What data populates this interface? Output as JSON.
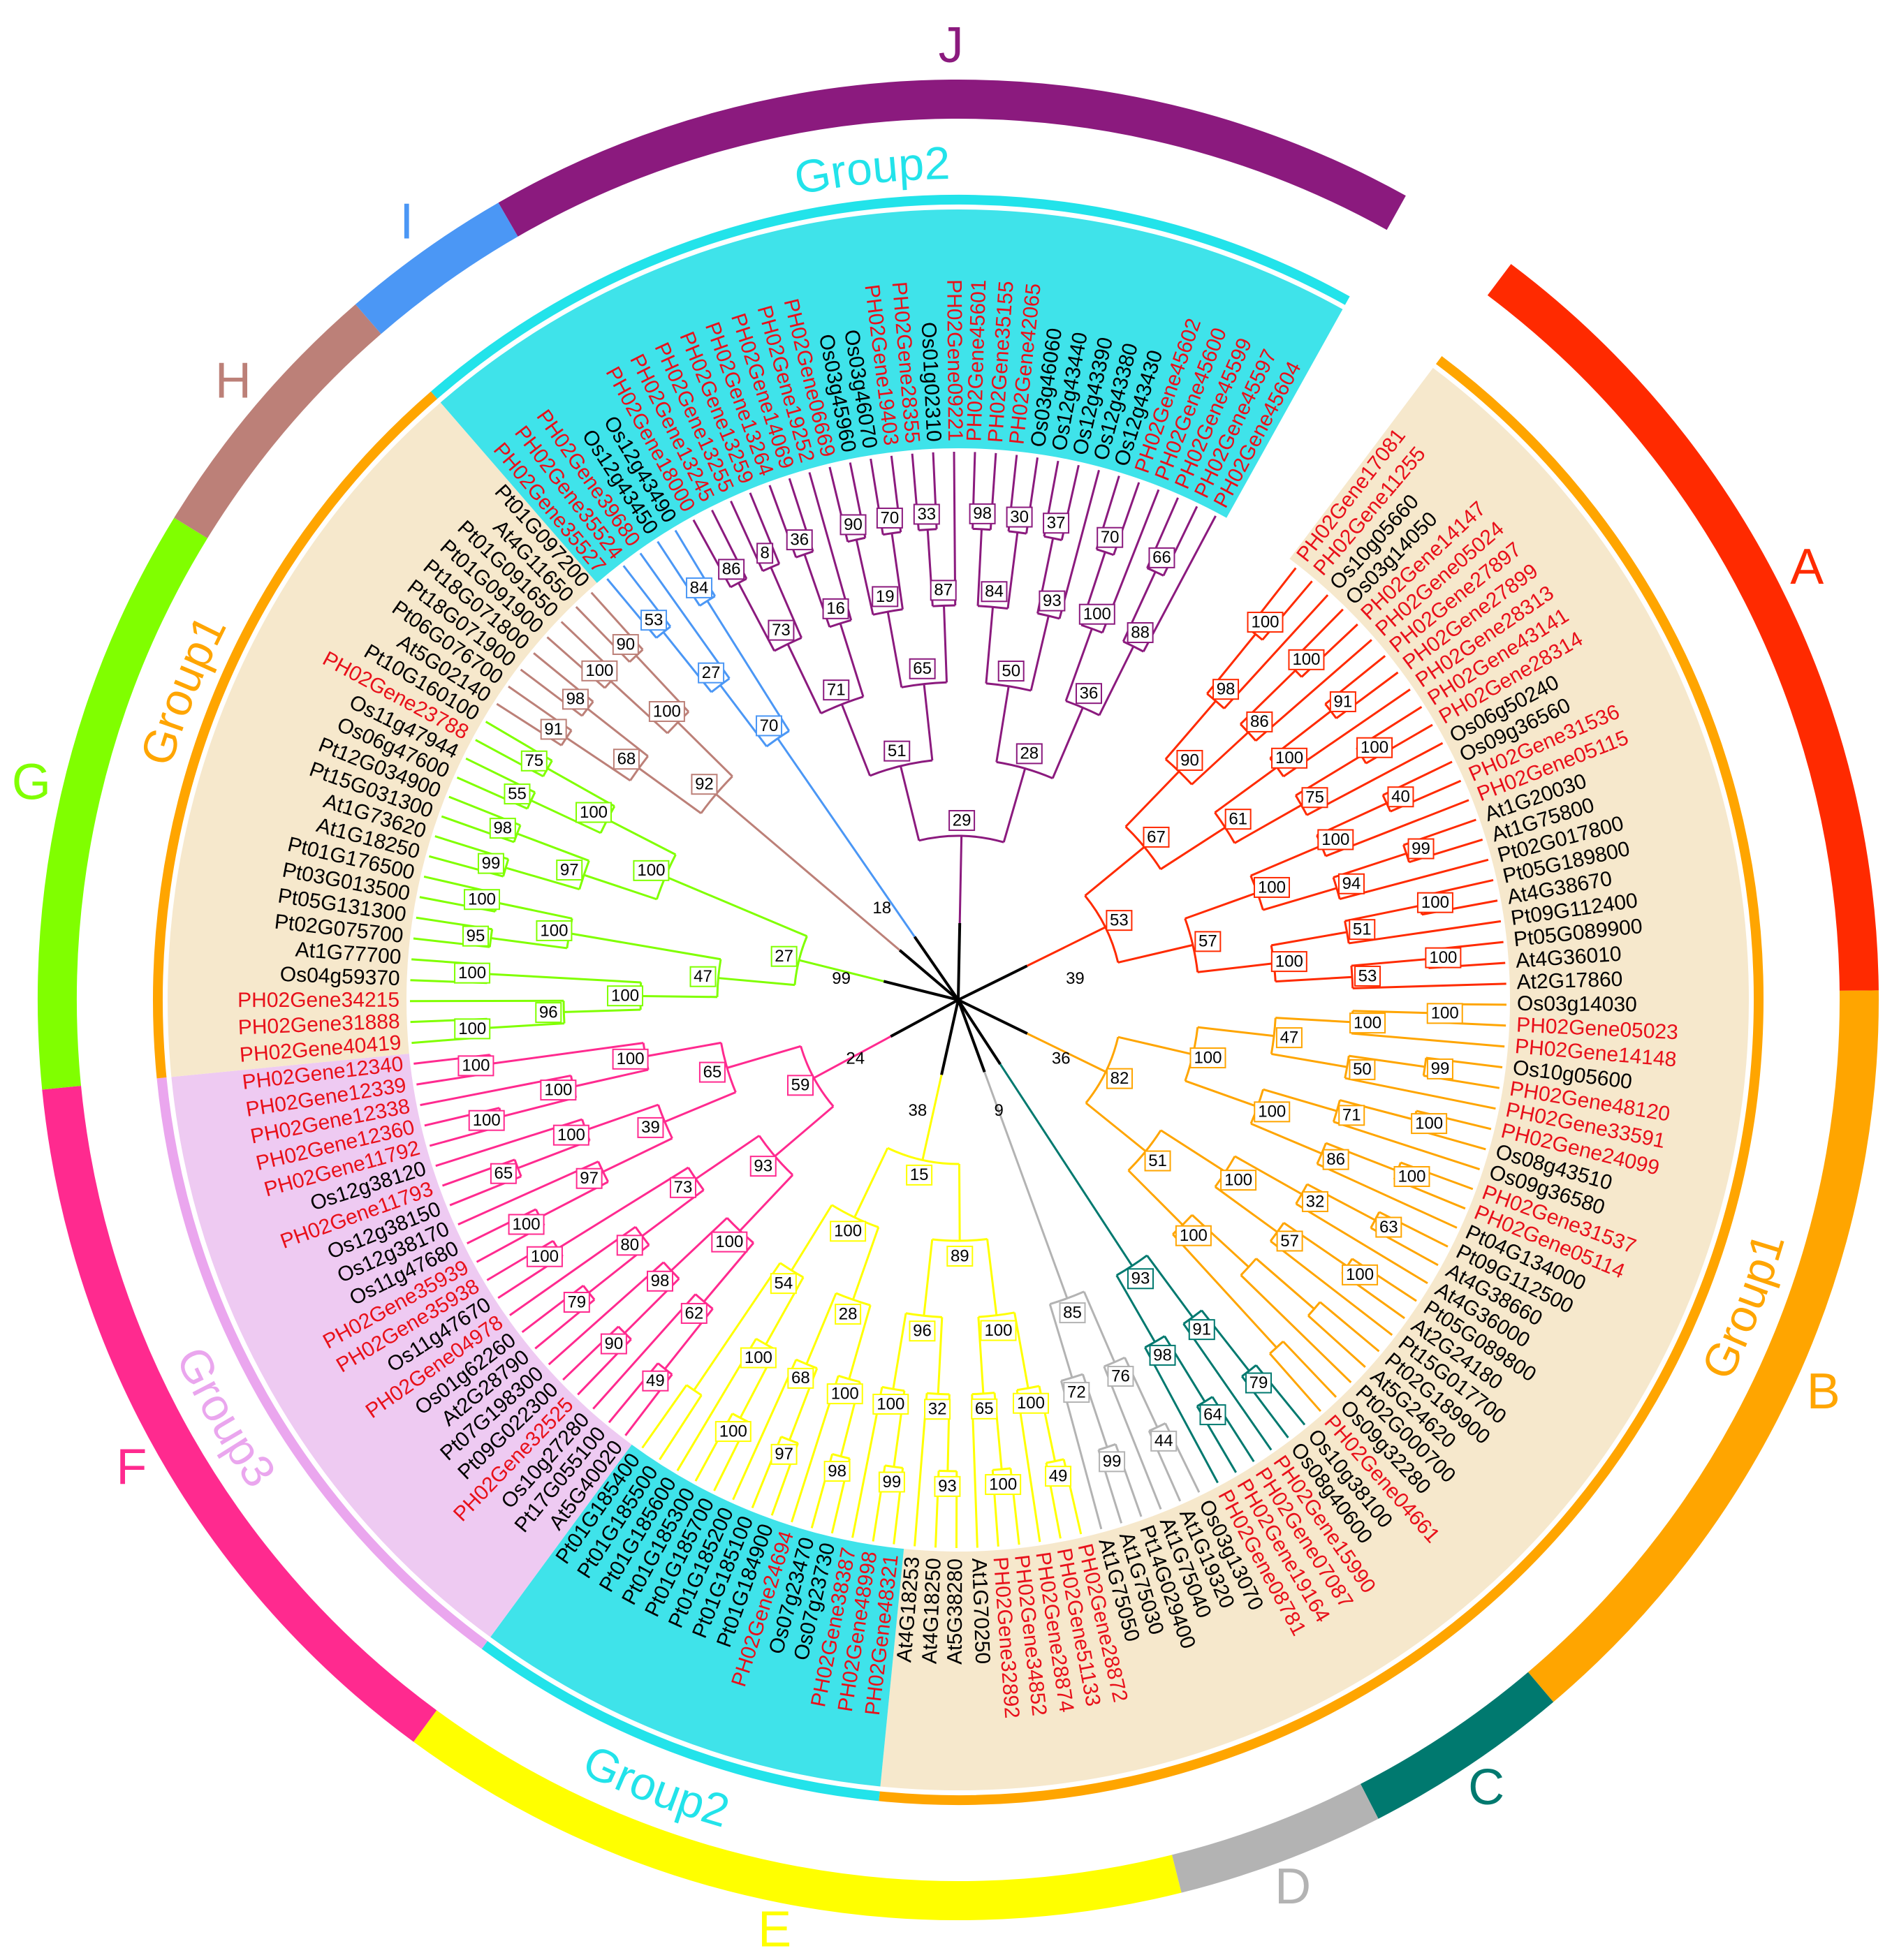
{
  "clades": [
    {
      "letter": "A",
      "color": "#ff2a00",
      "bootstraps": [
        53,
        67,
        90,
        98,
        100,
        86,
        100,
        61,
        100,
        91,
        75,
        100,
        57,
        100,
        100,
        40,
        94,
        99,
        100,
        51,
        100,
        53,
        100
      ],
      "leaves": [
        {
          "name": "PH02Gene17081",
          "color": "#e8101a"
        },
        {
          "name": "PH02Gene11255",
          "color": "#e8101a"
        },
        {
          "name": "Os10g05660",
          "color": "#000000"
        },
        {
          "name": "Os03g14050",
          "color": "#000000"
        },
        {
          "name": "PH02Gene14147",
          "color": "#e8101a"
        },
        {
          "name": "PH02Gene05024",
          "color": "#e8101a"
        },
        {
          "name": "PH02Gene27897",
          "color": "#e8101a"
        },
        {
          "name": "PH02Gene27899",
          "color": "#e8101a"
        },
        {
          "name": "PH02Gene28313",
          "color": "#e8101a"
        },
        {
          "name": "PH02Gene43141",
          "color": "#e8101a"
        },
        {
          "name": "PH02Gene28314",
          "color": "#e8101a"
        },
        {
          "name": "Os06g50240",
          "color": "#000000"
        },
        {
          "name": "Os09g36560",
          "color": "#000000"
        },
        {
          "name": "PH02Gene31536",
          "color": "#e8101a"
        },
        {
          "name": "PH02Gene05115",
          "color": "#e8101a"
        },
        {
          "name": "At1G20030",
          "color": "#000000"
        },
        {
          "name": "At1G75800",
          "color": "#000000"
        },
        {
          "name": "Pt02G017800",
          "color": "#000000"
        },
        {
          "name": "Pt05G189800",
          "color": "#000000"
        },
        {
          "name": "At4G38670",
          "color": "#000000"
        },
        {
          "name": "Pt09G112400",
          "color": "#000000"
        },
        {
          "name": "Pt05G089900",
          "color": "#000000"
        },
        {
          "name": "At4G36010",
          "color": "#000000"
        },
        {
          "name": "At2G17860",
          "color": "#000000"
        }
      ]
    },
    {
      "letter": "B",
      "color": "#ffa500",
      "bootstraps": [
        82,
        100,
        47,
        100,
        100,
        50,
        99,
        100,
        71,
        100,
        86,
        100,
        51,
        100,
        32,
        63,
        57,
        100,
        100
      ],
      "leaves": [
        {
          "name": "Os03g14030",
          "color": "#000000"
        },
        {
          "name": "PH02Gene05023",
          "color": "#e8101a"
        },
        {
          "name": "PH02Gene14148",
          "color": "#e8101a"
        },
        {
          "name": "Os10g05600",
          "color": "#000000"
        },
        {
          "name": "PH02Gene48120",
          "color": "#e8101a"
        },
        {
          "name": "PH02Gene33591",
          "color": "#e8101a"
        },
        {
          "name": "PH02Gene24099",
          "color": "#e8101a"
        },
        {
          "name": "Os08g43510",
          "color": "#000000"
        },
        {
          "name": "Os09g36580",
          "color": "#000000"
        },
        {
          "name": "PH02Gene31537",
          "color": "#e8101a"
        },
        {
          "name": "PH02Gene05114",
          "color": "#e8101a"
        },
        {
          "name": "Pt04G134000",
          "color": "#000000"
        },
        {
          "name": "Pt09G112500",
          "color": "#000000"
        },
        {
          "name": "At4G38660",
          "color": "#000000"
        },
        {
          "name": "At4G36000",
          "color": "#000000"
        },
        {
          "name": "Pt05G089800",
          "color": "#000000"
        },
        {
          "name": "At2G24180",
          "color": "#000000"
        },
        {
          "name": "Pt15G017700",
          "color": "#000000"
        },
        {
          "name": "Pt02G189900",
          "color": "#000000"
        },
        {
          "name": "At5G24620",
          "color": "#000000"
        },
        {
          "name": "Pt02G000700",
          "color": "#000000"
        },
        {
          "name": "Os09g32280",
          "color": "#000000"
        },
        {
          "name": "PH02Gene04661",
          "color": "#e8101a"
        }
      ]
    },
    {
      "letter": "C",
      "color": "#00796f",
      "bootstraps": [
        93,
        91,
        79,
        98,
        64
      ],
      "leaves": [
        {
          "name": "Os10g38100",
          "color": "#000000"
        },
        {
          "name": "Os08g40600",
          "color": "#000000"
        },
        {
          "name": "PH02Gene15990",
          "color": "#e8101a"
        },
        {
          "name": "PH02Gene07087",
          "color": "#e8101a"
        },
        {
          "name": "PH02Gene19164",
          "color": "#e8101a"
        },
        {
          "name": "PH02Gene08781",
          "color": "#e8101a"
        }
      ]
    },
    {
      "letter": "D",
      "color": "#b3b3b3",
      "bootstraps": [
        85,
        76,
        44,
        72,
        99
      ],
      "leaves": [
        {
          "name": "Os03g13070",
          "color": "#000000"
        },
        {
          "name": "At1G19320",
          "color": "#000000"
        },
        {
          "name": "At1G75040",
          "color": "#000000"
        },
        {
          "name": "Pt14G029400",
          "color": "#000000"
        },
        {
          "name": "At1G75030",
          "color": "#000000"
        },
        {
          "name": "At1G75050",
          "color": "#000000"
        }
      ]
    },
    {
      "letter": "E",
      "color": "#ffff00",
      "bootstraps": [
        15,
        89,
        100,
        100,
        49,
        65,
        100,
        96,
        32,
        93,
        100,
        99,
        100,
        28,
        100,
        98,
        68,
        97,
        54,
        100,
        100
      ],
      "leaves": [
        {
          "name": "PH02Gene28872",
          "color": "#e8101a"
        },
        {
          "name": "PH02Gene51133",
          "color": "#e8101a"
        },
        {
          "name": "PH02Gene28874",
          "color": "#e8101a"
        },
        {
          "name": "PH02Gene34852",
          "color": "#e8101a"
        },
        {
          "name": "PH02Gene32892",
          "color": "#e8101a"
        },
        {
          "name": "At1G70250",
          "color": "#000000"
        },
        {
          "name": "At5G38280",
          "color": "#000000"
        },
        {
          "name": "At4G18250",
          "color": "#000000"
        },
        {
          "name": "At4G18253",
          "color": "#000000"
        },
        {
          "name": "PH02Gene48321",
          "color": "#e8101a"
        },
        {
          "name": "PH02Gene48998",
          "color": "#e8101a"
        },
        {
          "name": "PH02Gene38387",
          "color": "#e8101a"
        },
        {
          "name": "Os07g23730",
          "color": "#000000"
        },
        {
          "name": "Os07g23470",
          "color": "#000000"
        },
        {
          "name": "PH02Gene24694",
          "color": "#e8101a"
        },
        {
          "name": "Pt01G184900",
          "color": "#000000"
        },
        {
          "name": "Pt01G185100",
          "color": "#000000"
        },
        {
          "name": "Pt01G185200",
          "color": "#000000"
        },
        {
          "name": "Pt01G185700",
          "color": "#000000"
        },
        {
          "name": "Pt01G185300",
          "color": "#000000"
        },
        {
          "name": "Pt01G185600",
          "color": "#000000"
        },
        {
          "name": "Pt01G185500",
          "color": "#000000"
        },
        {
          "name": "Pt01G185400",
          "color": "#000000"
        }
      ]
    },
    {
      "letter": "F",
      "color": "#ff2a8f",
      "bootstraps": [
        59,
        93,
        100,
        62,
        49,
        98,
        90,
        73,
        80,
        79,
        100,
        65,
        39,
        97,
        100,
        100,
        65,
        100,
        100,
        100,
        100
      ],
      "leaves": [
        {
          "name": "At5G40020",
          "color": "#000000"
        },
        {
          "name": "Pt17G055100",
          "color": "#000000"
        },
        {
          "name": "Os10g27280",
          "color": "#000000"
        },
        {
          "name": "PH02Gene32525",
          "color": "#e8101a"
        },
        {
          "name": "Pt09G022300",
          "color": "#000000"
        },
        {
          "name": "Pt07G198300",
          "color": "#000000"
        },
        {
          "name": "At2G28790",
          "color": "#000000"
        },
        {
          "name": "Os01g62260",
          "color": "#000000"
        },
        {
          "name": "PH02Gene04978",
          "color": "#e8101a"
        },
        {
          "name": "Os11g47670",
          "color": "#000000"
        },
        {
          "name": "PH02Gene35938",
          "color": "#e8101a"
        },
        {
          "name": "PH02Gene35939",
          "color": "#e8101a"
        },
        {
          "name": "Os11g47680",
          "color": "#000000"
        },
        {
          "name": "Os12g38170",
          "color": "#000000"
        },
        {
          "name": "Os12g38150",
          "color": "#000000"
        },
        {
          "name": "PH02Gene11793",
          "color": "#e8101a"
        },
        {
          "name": "Os12g38120",
          "color": "#000000"
        },
        {
          "name": "PH02Gene11792",
          "color": "#e8101a"
        },
        {
          "name": "PH02Gene12360",
          "color": "#e8101a"
        },
        {
          "name": "PH02Gene12338",
          "color": "#e8101a"
        },
        {
          "name": "PH02Gene12339",
          "color": "#e8101a"
        },
        {
          "name": "PH02Gene12340",
          "color": "#e8101a"
        }
      ]
    },
    {
      "letter": "G",
      "color": "#80ff00",
      "bootstraps": [
        27,
        47,
        100,
        96,
        100,
        100,
        100,
        95,
        100,
        100,
        97,
        99,
        98,
        100,
        55,
        75
      ],
      "leaves": [
        {
          "name": "PH02Gene40419",
          "color": "#e8101a"
        },
        {
          "name": "PH02Gene31888",
          "color": "#e8101a"
        },
        {
          "name": "PH02Gene34215",
          "color": "#e8101a"
        },
        {
          "name": "Os04g59370",
          "color": "#000000"
        },
        {
          "name": "At1G77700",
          "color": "#000000"
        },
        {
          "name": "Pt02G075700",
          "color": "#000000"
        },
        {
          "name": "Pt05G131300",
          "color": "#000000"
        },
        {
          "name": "Pt03G013500",
          "color": "#000000"
        },
        {
          "name": "Pt01G176500",
          "color": "#000000"
        },
        {
          "name": "At1G18250",
          "color": "#000000"
        },
        {
          "name": "At1G73620",
          "color": "#000000"
        },
        {
          "name": "Pt15G031300",
          "color": "#000000"
        },
        {
          "name": "Pt12G034900",
          "color": "#000000"
        },
        {
          "name": "Os06g47600",
          "color": "#000000"
        },
        {
          "name": "Os11g47944",
          "color": "#000000"
        },
        {
          "name": "PH02Gene23788",
          "color": "#e8101a"
        },
        {
          "name": "Pt10G160100",
          "color": "#000000"
        }
      ]
    },
    {
      "letter": "H",
      "color": "#bc8078",
      "bootstraps": [
        92,
        68,
        91,
        98,
        100,
        100,
        90
      ],
      "leaves": [
        {
          "name": "At5G02140",
          "color": "#000000"
        },
        {
          "name": "Pt06G076700",
          "color": "#000000"
        },
        {
          "name": "Pt18G071900",
          "color": "#000000"
        },
        {
          "name": "Pt18G071800",
          "color": "#000000"
        },
        {
          "name": "Pt01G091900",
          "color": "#000000"
        },
        {
          "name": "Pt01G091650",
          "color": "#000000"
        },
        {
          "name": "At4G11650",
          "color": "#000000"
        },
        {
          "name": "Pt01G097200",
          "color": "#000000"
        }
      ]
    },
    {
      "letter": "I",
      "color": "#4b97f5",
      "bootstraps": [
        70,
        27,
        53,
        84
      ],
      "leaves": [
        {
          "name": "PH02Gene35527",
          "color": "#e8101a"
        },
        {
          "name": "PH02Gene35524",
          "color": "#e8101a"
        },
        {
          "name": "PH02Gene39680",
          "color": "#e8101a"
        },
        {
          "name": "Os12g43450",
          "color": "#000000"
        },
        {
          "name": "Os12g43490",
          "color": "#000000"
        }
      ]
    },
    {
      "letter": "J",
      "color": "#8b1a7e",
      "bootstraps": [
        29,
        51,
        71,
        73,
        86,
        8,
        16,
        36,
        65,
        19,
        90,
        70,
        87,
        33,
        28,
        50,
        84,
        98,
        30,
        93,
        37,
        36,
        100,
        70,
        88,
        66
      ],
      "leaves": [
        {
          "name": "PH02Gene18000",
          "color": "#e8101a"
        },
        {
          "name": "PH02Gene13245",
          "color": "#e8101a"
        },
        {
          "name": "PH02Gene13255",
          "color": "#e8101a"
        },
        {
          "name": "PH02Gene13259",
          "color": "#e8101a"
        },
        {
          "name": "PH02Gene13264",
          "color": "#e8101a"
        },
        {
          "name": "PH02Gene14069",
          "color": "#e8101a"
        },
        {
          "name": "PH02Gene19252",
          "color": "#e8101a"
        },
        {
          "name": "PH02Gene06669",
          "color": "#e8101a"
        },
        {
          "name": "Os03g45960",
          "color": "#000000"
        },
        {
          "name": "Os03g46070",
          "color": "#000000"
        },
        {
          "name": "PH02Gene19403",
          "color": "#e8101a"
        },
        {
          "name": "PH02Gene28355",
          "color": "#e8101a"
        },
        {
          "name": "Os01g02310",
          "color": "#000000"
        },
        {
          "name": "PH02Gene09221",
          "color": "#e8101a"
        },
        {
          "name": "PH02Gene45601",
          "color": "#e8101a"
        },
        {
          "name": "PH02Gene35155",
          "color": "#e8101a"
        },
        {
          "name": "PH02Gene42065",
          "color": "#e8101a"
        },
        {
          "name": "Os03g46060",
          "color": "#000000"
        },
        {
          "name": "Os12g43440",
          "color": "#000000"
        },
        {
          "name": "Os12g43390",
          "color": "#000000"
        },
        {
          "name": "Os12g43380",
          "color": "#000000"
        },
        {
          "name": "Os12g43430",
          "color": "#000000"
        },
        {
          "name": "PH02Gene45602",
          "color": "#e8101a"
        },
        {
          "name": "PH02Gene45600",
          "color": "#e8101a"
        },
        {
          "name": "PH02Gene45599",
          "color": "#e8101a"
        },
        {
          "name": "PH02Gene45597",
          "color": "#e8101a"
        },
        {
          "name": "PH02Gene45604",
          "color": "#e8101a"
        }
      ]
    }
  ],
  "groups": [
    {
      "label": "Group1",
      "color": "#ffa500",
      "fill": "#f6e8cc",
      "first": "PH02Gene17081",
      "last": "At4G18253"
    },
    {
      "label": "Group2",
      "color": "#22e3ea",
      "fill": "#3fe3ea",
      "first": "PH02Gene48321",
      "last": "Pt01G185400"
    },
    {
      "label": "Group3",
      "color": "#eaa6ee",
      "fill": "#eecaf2",
      "first": "At5G40020",
      "last": "PH02Gene12340"
    },
    {
      "label": "Group1",
      "color": "#ffa500",
      "fill": "#f6e8cc",
      "first": "PH02Gene40419",
      "last": "Pt01G097200"
    },
    {
      "label": "Group2",
      "color": "#22e3ea",
      "fill": "#3fe3ea",
      "first": "PH02Gene35527",
      "last": "PH02Gene45604"
    }
  ],
  "backbone_bootstraps": [
    39,
    36,
    9,
    38,
    24,
    99,
    18
  ]
}
